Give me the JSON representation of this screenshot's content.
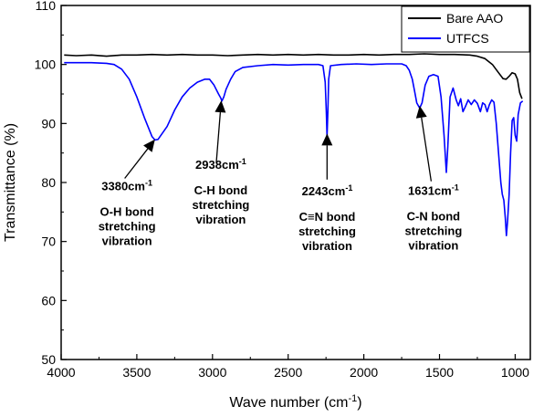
{
  "chart_data": {
    "type": "line",
    "title": "",
    "xlabel": "Wave number (cm",
    "xlabel_sup": "-1",
    "xlabel_close": ")",
    "ylabel": "Transmittance (%)",
    "xlim": [
      4000,
      900
    ],
    "ylim": [
      50,
      110
    ],
    "x_ticks": [
      4000,
      3500,
      3000,
      2500,
      2000,
      1500,
      1000
    ],
    "y_ticks": [
      50,
      60,
      70,
      80,
      90,
      100,
      110
    ],
    "legend_position": "top-right",
    "series": [
      {
        "name": "Bare AAO",
        "color": "#000000",
        "points": [
          [
            3980,
            101.6
          ],
          [
            3900,
            101.5
          ],
          [
            3800,
            101.6
          ],
          [
            3700,
            101.4
          ],
          [
            3600,
            101.6
          ],
          [
            3500,
            101.6
          ],
          [
            3400,
            101.7
          ],
          [
            3300,
            101.6
          ],
          [
            3200,
            101.7
          ],
          [
            3100,
            101.6
          ],
          [
            3000,
            101.6
          ],
          [
            2900,
            101.5
          ],
          [
            2800,
            101.6
          ],
          [
            2700,
            101.7
          ],
          [
            2600,
            101.6
          ],
          [
            2500,
            101.7
          ],
          [
            2400,
            101.6
          ],
          [
            2300,
            101.7
          ],
          [
            2200,
            101.6
          ],
          [
            2100,
            101.6
          ],
          [
            2000,
            101.7
          ],
          [
            1900,
            101.6
          ],
          [
            1800,
            101.7
          ],
          [
            1700,
            101.7
          ],
          [
            1600,
            101.8
          ],
          [
            1500,
            101.7
          ],
          [
            1400,
            101.7
          ],
          [
            1300,
            101.6
          ],
          [
            1250,
            101.4
          ],
          [
            1200,
            101.0
          ],
          [
            1150,
            100.0
          ],
          [
            1110,
            98.6
          ],
          [
            1080,
            97.6
          ],
          [
            1060,
            97.5
          ],
          [
            1040,
            98.0
          ],
          [
            1020,
            98.6
          ],
          [
            1000,
            98.4
          ],
          [
            985,
            97.5
          ],
          [
            970,
            95.2
          ],
          [
            955,
            94.2
          ]
        ]
      },
      {
        "name": "UTFCS",
        "color": "#0000ff",
        "points": [
          [
            3980,
            100.3
          ],
          [
            3800,
            100.3
          ],
          [
            3700,
            100.2
          ],
          [
            3650,
            100.0
          ],
          [
            3600,
            99.2
          ],
          [
            3550,
            97.5
          ],
          [
            3500,
            94.5
          ],
          [
            3450,
            91.0
          ],
          [
            3400,
            87.8
          ],
          [
            3380,
            87.2
          ],
          [
            3360,
            87.3
          ],
          [
            3300,
            89.5
          ],
          [
            3250,
            92.3
          ],
          [
            3200,
            94.5
          ],
          [
            3150,
            96.0
          ],
          [
            3100,
            97.0
          ],
          [
            3050,
            97.5
          ],
          [
            3020,
            97.5
          ],
          [
            2990,
            96.5
          ],
          [
            2960,
            95.0
          ],
          [
            2945,
            94.3
          ],
          [
            2938,
            93.8
          ],
          [
            2925,
            94.5
          ],
          [
            2910,
            95.8
          ],
          [
            2880,
            97.5
          ],
          [
            2850,
            98.8
          ],
          [
            2800,
            99.5
          ],
          [
            2700,
            99.8
          ],
          [
            2600,
            100.0
          ],
          [
            2500,
            99.9
          ],
          [
            2400,
            100.0
          ],
          [
            2300,
            100.0
          ],
          [
            2270,
            99.8
          ],
          [
            2255,
            97.0
          ],
          [
            2248,
            92.0
          ],
          [
            2243,
            87.8
          ],
          [
            2238,
            92.0
          ],
          [
            2232,
            97.5
          ],
          [
            2220,
            99.8
          ],
          [
            2150,
            100.0
          ],
          [
            2050,
            100.1
          ],
          [
            1950,
            100.0
          ],
          [
            1850,
            100.1
          ],
          [
            1750,
            100.1
          ],
          [
            1720,
            99.8
          ],
          [
            1700,
            99.0
          ],
          [
            1680,
            97.5
          ],
          [
            1665,
            95.5
          ],
          [
            1650,
            93.5
          ],
          [
            1631,
            92.6
          ],
          [
            1615,
            93.5
          ],
          [
            1595,
            96.5
          ],
          [
            1570,
            98.0
          ],
          [
            1540,
            98.3
          ],
          [
            1510,
            98.0
          ],
          [
            1490,
            94.5
          ],
          [
            1470,
            88.0
          ],
          [
            1455,
            81.7
          ],
          [
            1445,
            86.0
          ],
          [
            1430,
            94.5
          ],
          [
            1410,
            96.0
          ],
          [
            1390,
            94.0
          ],
          [
            1375,
            93.0
          ],
          [
            1360,
            94.2
          ],
          [
            1345,
            92.0
          ],
          [
            1330,
            92.8
          ],
          [
            1310,
            94.0
          ],
          [
            1290,
            93.2
          ],
          [
            1270,
            94.0
          ],
          [
            1250,
            93.4
          ],
          [
            1230,
            92.0
          ],
          [
            1215,
            93.5
          ],
          [
            1200,
            93.2
          ],
          [
            1185,
            92.0
          ],
          [
            1170,
            93.2
          ],
          [
            1155,
            94.0
          ],
          [
            1140,
            93.6
          ],
          [
            1125,
            90.0
          ],
          [
            1110,
            85.0
          ],
          [
            1095,
            80.0
          ],
          [
            1085,
            78.0
          ],
          [
            1075,
            77.0
          ],
          [
            1065,
            74.0
          ],
          [
            1058,
            71.0
          ],
          [
            1050,
            73.5
          ],
          [
            1040,
            78.0
          ],
          [
            1030,
            85.0
          ],
          [
            1020,
            90.5
          ],
          [
            1010,
            91.0
          ],
          [
            1000,
            88.0
          ],
          [
            990,
            87.0
          ],
          [
            980,
            91.5
          ],
          [
            965,
            93.5
          ],
          [
            950,
            93.8
          ]
        ]
      }
    ],
    "annotations": [
      {
        "lines": [
          "3380cm",
          "O-H bond",
          "stretching",
          "vibration"
        ],
        "sup": "-1",
        "tip": [
          3380,
          87.3
        ],
        "tail": [
          3580,
          80.7
        ],
        "label_x": 3565,
        "label_y": 78.7
      },
      {
        "lines": [
          "2938cm",
          "C-H bond",
          "stretching",
          "vibration"
        ],
        "sup": "-1",
        "tip": [
          2942,
          93.9
        ],
        "tail": [
          2975,
          83.3
        ],
        "label_x": 2945,
        "label_y": 82.3
      },
      {
        "lines": [
          "2243cm",
          "C≡N bond",
          "stretching",
          "vibration"
        ],
        "sup": "-1",
        "tip": [
          2243,
          88.3
        ],
        "tail": [
          2243,
          80.5
        ],
        "label_x": 2242,
        "label_y": 77.8
      },
      {
        "lines": [
          "1631cm",
          "C-N bond",
          "stretching",
          "vibration"
        ],
        "sup": "-1",
        "tip": [
          1631,
          93.0
        ],
        "tail": [
          1555,
          80.2
        ],
        "label_x": 1540,
        "label_y": 77.9
      }
    ]
  }
}
